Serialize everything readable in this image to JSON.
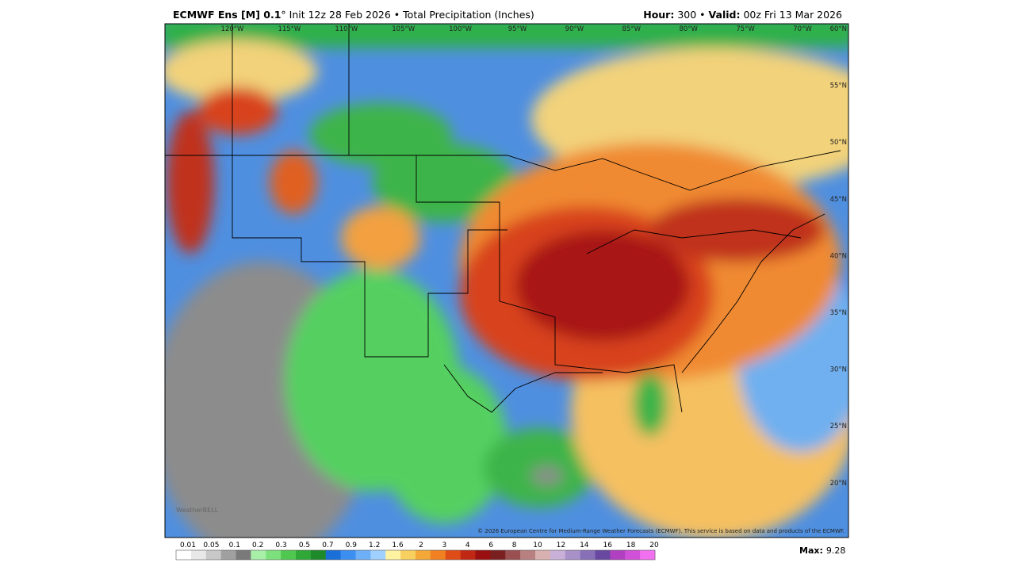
{
  "header": {
    "model": "ECMWF Ens [M] 0.1",
    "run": "° Init 12z 28 Feb 2026 • Total Precipitation (Inches)",
    "hour_label": "Hour:",
    "hour": " 300 • ",
    "valid_label": "Valid:",
    "valid": " 00z Fri 13 Mar 2026"
  },
  "map": {
    "longitudes": [
      "120°W",
      "115°W",
      "110°W",
      "105°W",
      "100°W",
      "95°W",
      "90°W",
      "85°W",
      "80°W",
      "75°W",
      "70°W"
    ],
    "latitudes": [
      "60°N",
      "55°N",
      "50°N",
      "45°N",
      "40°N",
      "35°N",
      "30°N",
      "25°N",
      "20°N"
    ],
    "watermark": "WeatherBELL",
    "credit": "© 2026 European Centre for Medium-Range Weather Forecasts (ECMWF). This service is based on data and products of the ECMWF."
  },
  "colorbar": {
    "labels": [
      "0.01",
      "0.05",
      "0.1",
      "0.2",
      "0.3",
      "0.5",
      "0.7",
      "0.9",
      "1.2",
      "1.6",
      "2",
      "3",
      "4",
      "6",
      "8",
      "10",
      "12",
      "14",
      "16",
      "18",
      "20"
    ]
  },
  "max": {
    "label": "Max:",
    "value": "9.28"
  }
}
